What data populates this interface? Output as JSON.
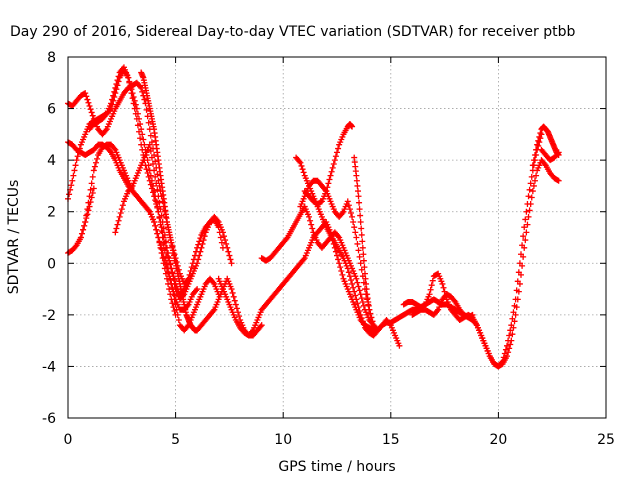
{
  "chart_data": {
    "type": "scatter",
    "title": "Day 290 of 2016, Sidereal Day-to-day VTEC variation (SDTVAR) for receiver ptbb",
    "xlabel": "GPS time / hours",
    "ylabel": "SDTVAR / TECUs",
    "xlim": [
      0,
      25
    ],
    "ylim": [
      -6,
      8
    ],
    "xticks": [
      0,
      5,
      10,
      15,
      20,
      25
    ],
    "yticks": [
      -6,
      -4,
      -2,
      0,
      2,
      4,
      6,
      8
    ],
    "grid": true,
    "marker": "plus",
    "color": "#ff0000",
    "series": [
      {
        "x": [
          0.0,
          0.2,
          0.4,
          0.6,
          0.8,
          1.0,
          1.2,
          1.4,
          1.6,
          1.8,
          2.0,
          2.2,
          2.4,
          2.6,
          2.8,
          3.0,
          3.2,
          3.4,
          3.6,
          3.8,
          4.0,
          4.2,
          4.4,
          4.6,
          4.8,
          5.0,
          5.2,
          5.4,
          5.6,
          5.8,
          6.0,
          6.2,
          6.4,
          6.6,
          6.8,
          7.0
        ],
        "y": [
          2.5,
          3.2,
          4.0,
          4.6,
          5.0,
          5.4,
          5.5,
          5.6,
          5.7,
          5.8,
          6.0,
          6.6,
          7.2,
          7.5,
          7.2,
          6.4,
          5.6,
          4.6,
          3.8,
          3.2,
          2.6,
          2.0,
          1.0,
          0.0,
          -0.8,
          -1.6,
          -2.4,
          -2.6,
          -2.4,
          -2.0,
          -1.6,
          -1.2,
          -0.8,
          -0.6,
          -0.8,
          -1.2
        ]
      },
      {
        "x": [
          0.0,
          0.2,
          0.4,
          0.6,
          0.8,
          1.0,
          1.2,
          1.4,
          1.6,
          1.8,
          2.0,
          2.2,
          2.4,
          2.6,
          2.8,
          3.0,
          3.2,
          3.4,
          3.6,
          3.8,
          4.0,
          4.2,
          4.4,
          4.6,
          4.8,
          5.0,
          5.2,
          5.4,
          5.6,
          5.8,
          6.0
        ],
        "y": [
          4.7,
          4.6,
          4.4,
          4.3,
          4.2,
          4.3,
          4.4,
          4.6,
          4.6,
          4.5,
          4.3,
          4.0,
          3.6,
          3.3,
          3.0,
          2.8,
          2.6,
          2.4,
          2.2,
          2.0,
          1.6,
          1.0,
          0.4,
          -0.2,
          -0.8,
          -1.4,
          -1.8,
          -1.8,
          -1.6,
          -1.2,
          -1.0
        ]
      },
      {
        "x": [
          0.0,
          0.2,
          0.4,
          0.6,
          0.8,
          1.0,
          1.2,
          1.4,
          1.6,
          1.8,
          2.0,
          2.2,
          2.4,
          2.6,
          2.8,
          3.0,
          3.2,
          3.4,
          3.6,
          3.8,
          4.0,
          4.2,
          4.4,
          4.6,
          4.8,
          5.0
        ],
        "y": [
          0.4,
          0.5,
          0.7,
          1.0,
          1.6,
          2.6,
          3.6,
          4.2,
          4.5,
          4.6,
          4.6,
          4.4,
          4.0,
          3.6,
          3.2,
          2.8,
          2.6,
          2.4,
          2.2,
          2.0,
          1.6,
          1.0,
          0.2,
          -0.6,
          -1.4,
          -2.0
        ]
      },
      {
        "x": [
          0.0,
          0.2,
          0.4,
          0.6,
          0.8,
          1.0,
          1.2,
          1.4,
          1.6,
          1.8,
          2.0,
          2.2,
          2.4,
          2.6,
          2.8,
          3.0,
          3.2,
          3.4,
          3.6,
          3.8,
          4.0,
          4.2,
          4.4,
          4.6,
          4.8,
          5.0,
          5.2,
          5.4,
          5.6,
          5.8,
          6.0,
          6.2,
          6.4,
          6.6,
          6.8,
          7.0,
          7.2
        ],
        "y": [
          6.2,
          6.1,
          6.3,
          6.5,
          6.6,
          6.1,
          5.6,
          5.2,
          5.0,
          5.2,
          5.6,
          6.0,
          6.3,
          6.6,
          6.8,
          6.9,
          7.0,
          6.8,
          6.2,
          5.2,
          4.2,
          3.2,
          2.4,
          1.6,
          0.8,
          0.2,
          -0.4,
          -0.8,
          -0.6,
          0.0,
          0.6,
          1.1,
          1.4,
          1.6,
          1.7,
          1.4,
          0.6
        ]
      },
      {
        "x": [
          2.2,
          2.4,
          2.6,
          2.8,
          3.0,
          3.2,
          3.4,
          3.6,
          3.8,
          4.0,
          4.2,
          4.4,
          4.6,
          4.8,
          5.0,
          5.2,
          5.4,
          5.6,
          5.8,
          6.0,
          6.2,
          6.4,
          6.6,
          6.8,
          7.0,
          7.2,
          7.4,
          7.6
        ],
        "y": [
          1.2,
          1.8,
          2.4,
          2.8,
          3.0,
          3.4,
          3.8,
          4.2,
          4.6,
          3.6,
          2.6,
          1.6,
          0.6,
          -0.2,
          -1.0,
          -1.4,
          -1.2,
          -0.8,
          -0.4,
          0.0,
          0.6,
          1.2,
          1.6,
          1.8,
          1.6,
          1.2,
          0.6,
          0.0
        ]
      },
      {
        "x": [
          3.4,
          3.5,
          3.6,
          3.7,
          3.8,
          3.9,
          4.0,
          4.1,
          4.2,
          4.3,
          4.4,
          4.5,
          4.6,
          4.7,
          4.8,
          4.9,
          5.0,
          5.1,
          5.2,
          5.3,
          5.4,
          5.5,
          5.6,
          5.7,
          5.8,
          5.9,
          6.0,
          6.2,
          6.4,
          6.6,
          6.8,
          7.0,
          7.2,
          7.4,
          7.6,
          7.8,
          8.0,
          8.2,
          8.4,
          8.6,
          8.8,
          9.0
        ],
        "y": [
          7.4,
          7.2,
          6.8,
          6.4,
          6.0,
          5.6,
          5.2,
          4.6,
          4.0,
          3.4,
          2.8,
          2.2,
          1.6,
          1.2,
          0.8,
          0.4,
          0.0,
          -0.4,
          -0.8,
          -1.2,
          -1.6,
          -2.0,
          -2.2,
          -2.4,
          -2.5,
          -2.6,
          -2.6,
          -2.4,
          -2.2,
          -2.0,
          -1.8,
          -1.4,
          -1.0,
          -0.6,
          -1.0,
          -1.6,
          -2.2,
          -2.6,
          -2.8,
          -2.8,
          -2.6,
          -2.4
        ]
      },
      {
        "x": [
          1.0,
          1.2,
          1.4,
          1.6,
          1.8,
          2.0,
          2.2,
          2.4,
          2.6,
          2.8,
          3.0,
          3.2,
          3.4,
          3.6,
          3.8,
          4.0,
          4.2,
          4.4,
          4.6,
          4.8,
          5.0,
          5.2,
          5.4,
          5.6
        ],
        "y": [
          5.2,
          5.4,
          5.5,
          5.6,
          5.8,
          6.2,
          6.8,
          7.4,
          7.6,
          7.2,
          6.6,
          6.0,
          5.2,
          4.4,
          3.6,
          2.8,
          2.0,
          1.2,
          0.4,
          -0.2,
          -0.8,
          -1.2,
          -1.0,
          -0.6
        ]
      },
      {
        "x": [
          0.6,
          0.8,
          1.0,
          1.2
        ],
        "y": [
          1.0,
          1.6,
          2.2,
          2.9
        ]
      },
      {
        "x": [
          7.0,
          7.2,
          7.4,
          7.6,
          7.8,
          8.0,
          8.2,
          8.4,
          8.6,
          8.8,
          9.0,
          9.2,
          9.4,
          9.6,
          9.8,
          10.0,
          10.2,
          10.4,
          10.6,
          10.8,
          11.0,
          11.2,
          11.4,
          11.6,
          11.8,
          12.0,
          12.2,
          12.4,
          12.6,
          12.8,
          13.0,
          13.2,
          13.4,
          13.6,
          13.8,
          14.0,
          14.2,
          14.4,
          14.6,
          14.8,
          15.0,
          15.2,
          15.4
        ],
        "y": [
          -0.6,
          -1.0,
          -1.4,
          -1.8,
          -2.2,
          -2.5,
          -2.7,
          -2.8,
          -2.6,
          -2.2,
          -1.8,
          -1.6,
          -1.4,
          -1.2,
          -1.0,
          -0.8,
          -0.6,
          -0.4,
          -0.2,
          0.0,
          0.2,
          0.6,
          1.0,
          1.2,
          1.4,
          1.6,
          1.2,
          0.6,
          0.0,
          -0.6,
          -1.0,
          -1.4,
          -1.8,
          -2.2,
          -2.4,
          -2.5,
          -2.6,
          -2.6,
          -2.4,
          -2.2,
          -2.4,
          -2.8,
          -3.2
        ]
      },
      {
        "x": [
          9.0,
          9.2,
          9.4,
          9.6,
          9.8,
          10.0,
          10.2,
          10.4,
          10.6,
          10.8,
          11.0,
          11.2,
          11.4,
          11.6,
          11.8,
          12.0,
          12.2,
          12.4,
          12.6,
          12.8,
          13.0,
          13.2,
          13.4,
          13.6,
          13.8,
          14.0,
          14.2,
          14.4,
          14.6
        ],
        "y": [
          0.2,
          0.1,
          0.2,
          0.4,
          0.6,
          0.8,
          1.0,
          1.3,
          1.6,
          1.9,
          2.2,
          1.8,
          1.2,
          0.8,
          0.6,
          0.8,
          1.0,
          1.2,
          1.0,
          0.6,
          0.2,
          -0.2,
          -0.6,
          -1.2,
          -1.8,
          -2.2,
          -2.4,
          -2.6,
          -2.4
        ]
      },
      {
        "x": [
          10.6,
          10.8,
          11.0,
          11.2,
          11.4,
          11.6,
          11.8,
          12.0,
          12.2,
          12.4,
          12.6,
          12.8,
          13.0,
          13.2,
          13.4,
          13.6,
          13.8,
          14.0,
          14.2,
          14.4
        ],
        "y": [
          4.1,
          3.9,
          3.4,
          3.0,
          2.6,
          2.2,
          1.8,
          1.4,
          1.1,
          0.8,
          0.5,
          0.2,
          -0.2,
          -0.8,
          -1.4,
          -2.0,
          -2.5,
          -2.7,
          -2.8,
          -2.6
        ]
      },
      {
        "x": [
          10.8,
          11.0,
          11.2,
          11.4,
          11.6,
          11.8,
          12.0,
          12.2,
          12.4,
          12.6,
          12.8,
          13.0,
          13.2,
          13.4,
          13.6,
          13.8,
          14.0
        ],
        "y": [
          2.2,
          2.6,
          3.0,
          3.2,
          3.2,
          3.0,
          2.8,
          2.4,
          2.0,
          1.8,
          2.0,
          2.4,
          1.8,
          1.0,
          0.0,
          -1.0,
          -1.8
        ]
      },
      {
        "x": [
          11.0,
          11.2,
          11.4,
          11.6,
          11.8,
          12.0,
          12.2,
          12.4,
          12.6,
          12.8,
          13.0,
          13.1,
          13.2
        ],
        "y": [
          2.8,
          2.6,
          2.4,
          2.3,
          2.4,
          2.8,
          3.4,
          4.0,
          4.6,
          5.0,
          5.3,
          5.4,
          5.3
        ]
      },
      {
        "x": [
          13.3,
          13.4,
          13.5,
          13.6,
          13.7,
          13.8,
          13.9,
          14.0,
          14.2,
          14.4
        ],
        "y": [
          4.1,
          3.4,
          2.6,
          1.6,
          0.6,
          -0.4,
          -1.2,
          -1.8,
          -2.4,
          -2.6
        ]
      },
      {
        "x": [
          14.6,
          14.8,
          15.0,
          15.2,
          15.4,
          15.6,
          15.8,
          16.0,
          16.2,
          16.4,
          16.6,
          16.8,
          17.0,
          17.2,
          17.4,
          17.6,
          17.8,
          18.0,
          18.2,
          18.4,
          18.6,
          18.8,
          19.0,
          19.2,
          19.4,
          19.6,
          19.8,
          20.0,
          20.2,
          20.4,
          20.6,
          20.8,
          21.0,
          21.2,
          21.4,
          21.6,
          21.8,
          22.0
        ],
        "y": [
          -2.4,
          -2.3,
          -2.3,
          -2.2,
          -2.1,
          -2.0,
          -1.9,
          -1.8,
          -1.8,
          -1.7,
          -1.6,
          -1.5,
          -1.4,
          -1.5,
          -1.6,
          -1.6,
          -1.7,
          -1.8,
          -1.9,
          -2.0,
          -2.1,
          -2.2,
          -2.4,
          -2.8,
          -3.2,
          -3.6,
          -3.9,
          -4.0,
          -3.8,
          -3.2,
          -2.4,
          -1.4,
          0.0,
          1.4,
          2.6,
          3.6,
          4.4,
          5.0
        ]
      },
      {
        "x": [
          15.6,
          15.8,
          16.0,
          16.2,
          16.4,
          16.6,
          16.8,
          17.0,
          17.2,
          17.4,
          17.6,
          17.8,
          18.0,
          18.2,
          18.4,
          18.6,
          18.8,
          19.0,
          19.2,
          19.4,
          19.6,
          19.8,
          20.0
        ],
        "y": [
          -1.6,
          -1.5,
          -1.5,
          -1.6,
          -1.7,
          -1.6,
          -1.2,
          -0.5,
          -0.4,
          -0.8,
          -1.4,
          -1.8,
          -2.0,
          -2.2,
          -2.1,
          -2.0,
          -2.1,
          -2.4,
          -2.8,
          -3.2,
          -3.6,
          -3.9,
          -4.0
        ]
      },
      {
        "x": [
          16.0,
          16.2,
          16.4,
          16.6,
          16.8,
          17.0,
          17.2,
          17.4,
          17.6,
          17.8,
          18.0,
          18.2,
          18.4,
          18.6,
          18.8
        ],
        "y": [
          -2.0,
          -1.9,
          -1.8,
          -1.8,
          -1.9,
          -2.0,
          -1.8,
          -1.4,
          -1.2,
          -1.3,
          -1.5,
          -1.8,
          -2.0,
          -2.1,
          -2.0
        ]
      },
      {
        "x": [
          20.0,
          20.2,
          20.4,
          20.6,
          20.8,
          21.0,
          21.2,
          21.4,
          21.6,
          21.8,
          22.0,
          22.2,
          22.4,
          22.6,
          22.8
        ],
        "y": [
          -4.0,
          -3.9,
          -3.6,
          -3.0,
          -2.0,
          -0.8,
          0.6,
          1.8,
          2.8,
          3.6,
          4.0,
          3.8,
          3.5,
          3.3,
          3.2
        ]
      },
      {
        "x": [
          21.6,
          21.8,
          22.0,
          22.1,
          22.2,
          22.3,
          22.4,
          22.5,
          22.6,
          22.7,
          22.8
        ],
        "y": [
          3.8,
          4.6,
          5.2,
          5.3,
          5.2,
          5.1,
          4.9,
          4.7,
          4.5,
          4.3,
          4.2
        ]
      },
      {
        "x": [
          22.0,
          22.2,
          22.4,
          22.6,
          22.8
        ],
        "y": [
          4.4,
          4.2,
          4.0,
          4.1,
          4.3
        ]
      }
    ]
  }
}
